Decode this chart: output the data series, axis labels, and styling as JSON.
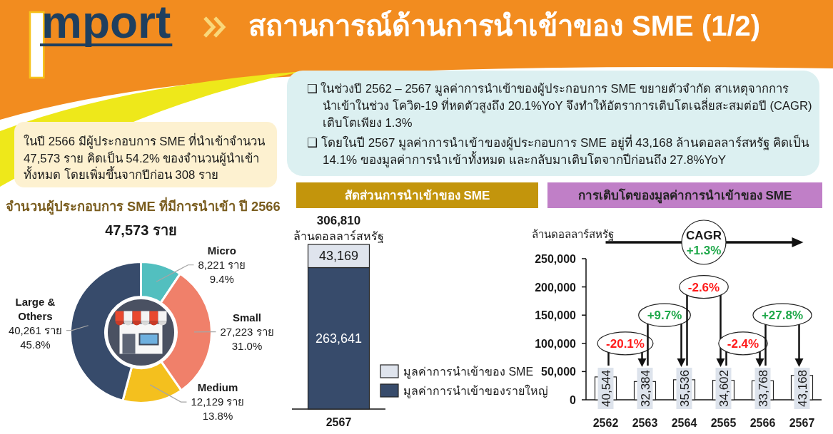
{
  "chart_data": [
    {
      "type": "other",
      "title": "Import",
      "subtitle": "สถานการณ์ด้านการนำเข้าของ SME (1/2)"
    },
    {
      "type": "other",
      "annotations": [
        "❑ ในช่วงปี 2562 – 2567 มูลค่าการนำเข้าของผู้ประกอบการ SME ขยายตัวจำกัด สาเหตุจากการ\nนำเข้าในช่วง โควิด-19 ที่หดตัวสูงถึง 20.1%YoY จึงทำให้อัตราการเติบโตเฉลี่ยสะสมต่อปี (CAGR)\nเติบโตเพียง 1.3%",
        "❑ โดยในปี 2567 มูลค่าการนำเข้าของผู้ประกอบการ SME อยู่ที่ 43,168 ล้านดอลลาร์สหรัฐ คิดเป็น\n14.1% ของมูลค่าการนำเข้าทั้งหมด และกลับมาเติบโตจากปีก่อนถึง 27.8%YoY"
      ]
    },
    {
      "type": "other",
      "annotations": [
        "ในปี 2566 มีผู้ประกอบการ SME ที่นำเข้าจำนวน\n47,573 ราย คิดเป็น 54.2% ของจำนวนผู้นำเข้า\nทั้งหมด โดยเพิ่มขึ้นจากปีก่อน 308 ราย"
      ]
    },
    {
      "type": "donut",
      "title": "จำนวนผู้ประกอบการ SME ที่มีการนำเข้า ปี 2566",
      "subtitle": "47,573 ราย",
      "categories": [
        "Micro",
        "Small",
        "Medium",
        "Large &\nOthers"
      ],
      "values": [
        8221,
        27223,
        12129,
        40261
      ],
      "colors": [
        "#52bfbf",
        "#f0806a",
        "#f4c01e",
        "#374b6b"
      ],
      "value_labels": [
        "8,221 ราย\n9.4%",
        "27,223 ราย\n31.0%",
        "12,129 ราย\n13.8%",
        "40,261 ราย\n45.8%"
      ]
    },
    {
      "type": "bar",
      "title": "สัดส่วนการนำเข้าของ SME",
      "ylabel": "ล้านดอลลาร์สหรัฐ",
      "categories": [
        "2567"
      ],
      "stacked": true,
      "series": [
        {
          "name": "มูลค่าการนำเข้าของรายใหญ่",
          "color": "#374b6b",
          "values": [
            263641
          ],
          "value_labels": [
            "263,641"
          ]
        },
        {
          "name": "มูลค่าการนำเข้าของ SME",
          "color": "#dfe4ed",
          "values": [
            43169
          ],
          "value_labels": [
            "43,169"
          ]
        }
      ],
      "totals": [
        "306,810"
      ],
      "legend": "bottom right"
    },
    {
      "type": "bar",
      "title": "การเติบโตของมูลค่าการนำเข้าของ SME",
      "ylabel": "ล้านดอลลาร์สหรัฐ",
      "categories": [
        "2562",
        "2563",
        "2564",
        "2565",
        "2566",
        "2567"
      ],
      "values": [
        40544,
        32384,
        35536,
        34602,
        33768,
        43168
      ],
      "value_labels": [
        "40,544",
        "32,384",
        "35,536",
        "34,602",
        "33,768",
        "43,168"
      ],
      "color": "#ffffff",
      "ylim": [
        0,
        250000
      ],
      "yticks": [
        0,
        {
          "value": 50000,
          "label": "50,000"
        },
        {
          "value": 100000,
          "label": "100,000"
        },
        {
          "value": 150000,
          "label": "150,000"
        },
        {
          "value": 200000,
          "label": "200,000"
        },
        {
          "value": 250000,
          "label": "250,000"
        }
      ],
      "annotations": [
        "-20.1%",
        "+9.7%",
        "-2.6%",
        "-2.4%",
        "+27.8%",
        "CAGR",
        "+1.3%"
      ]
    }
  ]
}
